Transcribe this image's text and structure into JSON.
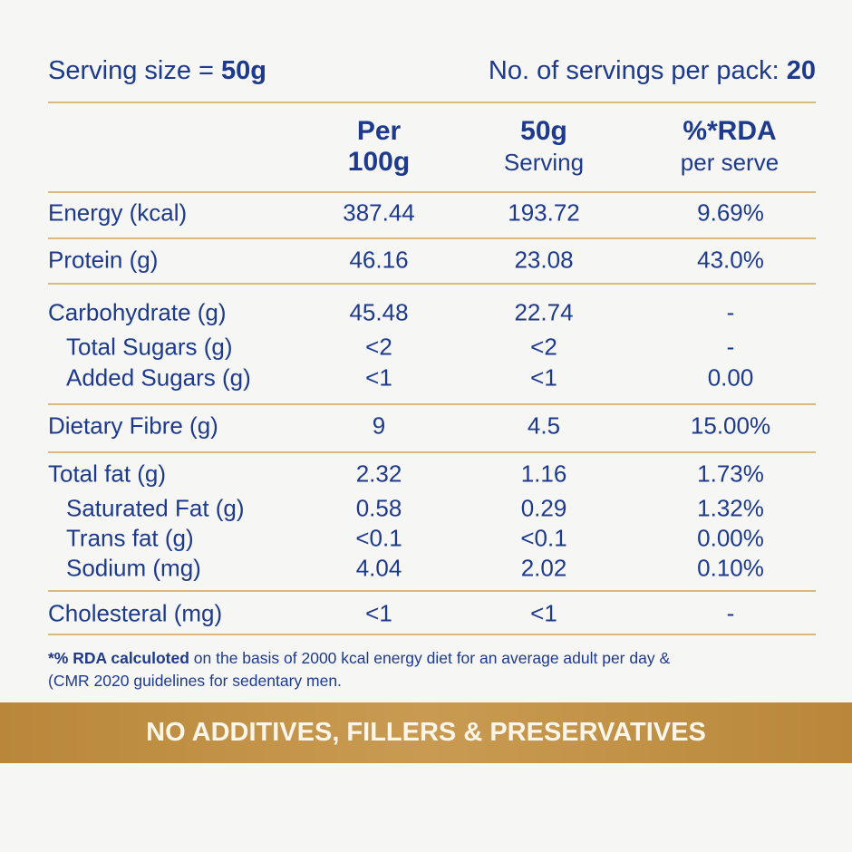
{
  "serving": {
    "label": "Serving size = ",
    "value": "50g",
    "pack_label": "No. of servings per pack: ",
    "pack_value": "20"
  },
  "columns": [
    {
      "line1": "Per",
      "line2": "100g"
    },
    {
      "line1": "50g",
      "line2": "Serving"
    },
    {
      "line1": "%*RDA",
      "line2": "per serve"
    }
  ],
  "rows": [
    {
      "label": "Energy (kcal)",
      "per100": "387.44",
      "serving": "193.72",
      "rda": "9.69%"
    },
    {
      "label": "Protein (g)",
      "per100": "46.16",
      "serving": "23.08",
      "rda": "43.0%"
    },
    {
      "label": "Carbohydrate (g)",
      "per100": "45.48",
      "serving": "22.74",
      "rda": "-"
    },
    {
      "label": "Total Sugars (g)",
      "per100": "<2",
      "serving": "<2",
      "rda": "-"
    },
    {
      "label": "Added Sugars (g)",
      "per100": "<1",
      "serving": "<1",
      "rda": "0.00"
    },
    {
      "label": "Dietary Fibre (g)",
      "per100": "9",
      "serving": "4.5",
      "rda": "15.00%"
    },
    {
      "label": "Total fat (g)",
      "per100": "2.32",
      "serving": "1.16",
      "rda": "1.73%"
    },
    {
      "label": "Saturated Fat (g)",
      "per100": "0.58",
      "serving": "0.29",
      "rda": "1.32%"
    },
    {
      "label": "Trans fat (g)",
      "per100": "<0.1",
      "serving": "<0.1",
      "rda": "0.00%"
    },
    {
      "label": "Sodium (mg)",
      "per100": "4.04",
      "serving": "2.02",
      "rda": "0.10%"
    },
    {
      "label": "Cholesteral (mg)",
      "per100": "<1",
      "serving": "<1",
      "rda": "-"
    }
  ],
  "footnote": {
    "bold": "*% RDA calculoted",
    "text": " on the basis of 2000 kcal energy diet for an average adult per day &",
    "line2": "(CMR 2020 guidelines for sedentary men."
  },
  "banner": "NO ADDITIVES, FILLERS & PRESERVATIVES",
  "colors": {
    "text": "#1d3a8c",
    "rule": "#d9b97c",
    "banner": "#b8873a"
  }
}
